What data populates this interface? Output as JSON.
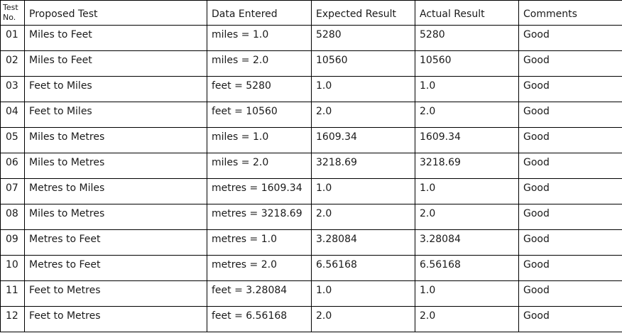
{
  "table": {
    "headers": {
      "test_no": "Test No.",
      "proposed_test": "Proposed Test",
      "data_entered": "Data Entered",
      "expected_result": "Expected Result",
      "actual_result": "Actual Result",
      "comments": "Comments"
    },
    "rows": [
      {
        "no": "01",
        "test": "Miles to Feet",
        "data": "miles = 1.0",
        "expected": "5280",
        "actual": "5280",
        "comment": "Good"
      },
      {
        "no": "02",
        "test": "Miles to Feet",
        "data": "miles = 2.0",
        "expected": "10560",
        "actual": "10560",
        "comment": "Good"
      },
      {
        "no": "03",
        "test": "Feet to Miles",
        "data": "feet = 5280",
        "expected": "1.0",
        "actual": "1.0",
        "comment": "Good"
      },
      {
        "no": "04",
        "test": "Feet to Miles",
        "data": "feet = 10560",
        "expected": "2.0",
        "actual": "2.0",
        "comment": "Good"
      },
      {
        "no": "05",
        "test": "Miles to Metres",
        "data": "miles = 1.0",
        "expected": "1609.34",
        "actual": "1609.34",
        "comment": "Good"
      },
      {
        "no": "06",
        "test": "Miles to Metres",
        "data": "miles = 2.0",
        "expected": "3218.69",
        "actual": "3218.69",
        "comment": "Good"
      },
      {
        "no": "07",
        "test": "Metres to Miles",
        "data": "metres = 1609.34",
        "expected": "1.0",
        "actual": "1.0",
        "comment": "Good"
      },
      {
        "no": "08",
        "test": "Miles to Metres",
        "data": "metres = 3218.69",
        "expected": "2.0",
        "actual": "2.0",
        "comment": "Good"
      },
      {
        "no": "09",
        "test": "Metres to Feet",
        "data": "metres = 1.0",
        "expected": "3.28084",
        "actual": "3.28084",
        "comment": "Good"
      },
      {
        "no": "10",
        "test": "Metres to Feet",
        "data": "metres = 2.0",
        "expected": "6.56168",
        "actual": "6.56168",
        "comment": "Good"
      },
      {
        "no": "11",
        "test": "Feet to Metres",
        "data": "feet = 3.28084",
        "expected": "1.0",
        "actual": "1.0",
        "comment": "Good"
      },
      {
        "no": "12",
        "test": "Feet to Metres",
        "data": "feet = 6.56168",
        "expected": "2.0",
        "actual": "2.0",
        "comment": "Good"
      }
    ]
  }
}
